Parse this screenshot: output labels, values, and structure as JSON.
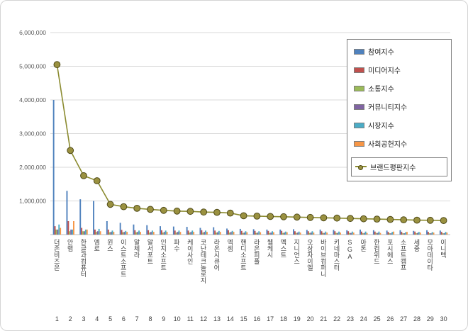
{
  "chart_data": {
    "type": "bar+line",
    "title": "",
    "grid": true,
    "legend_position": "top-right",
    "y_axis": {
      "max": 6000000,
      "min": 0,
      "tick_interval": 1000000,
      "tick_labels": [
        "1,000,000",
        "2,000,000",
        "3,000,000",
        "4,000,000",
        "5,000,000",
        "6,000,000"
      ]
    },
    "categories": [
      "더존비즈온",
      "안랩",
      "한글과컴퓨터",
      "엠로",
      "윈스",
      "이스트소프트",
      "알체라",
      "알서포트",
      "인지소프트",
      "파수",
      "케이사인",
      "코난테크놀로지",
      "라온시큐어",
      "엑셈",
      "핸디소프트",
      "라온피플",
      "웹케시",
      "멕스트",
      "지니언스",
      "오상자이엘",
      "바이브컴퍼니",
      "키네마스터",
      "SGA",
      "아톤",
      "한컴위드",
      "포시에스",
      "소프트캠프",
      "세중",
      "모아데이타",
      "이니텍"
    ],
    "ranks": [
      "1",
      "2",
      "3",
      "4",
      "5",
      "6",
      "7",
      "8",
      "9",
      "10",
      "11",
      "12",
      "13",
      "14",
      "15",
      "16",
      "17",
      "18",
      "19",
      "20",
      "21",
      "22",
      "23",
      "24",
      "25",
      "26",
      "27",
      "28",
      "29",
      "30"
    ],
    "bar_series": [
      {
        "name": "참여지수",
        "color": "#4f81bd",
        "values": [
          4000000,
          1300000,
          1050000,
          1000000,
          400000,
          350000,
          300000,
          280000,
          250000,
          240000,
          230000,
          200000,
          220000,
          180000,
          170000,
          160000,
          150000,
          150000,
          160000,
          140000,
          150000,
          140000,
          130000,
          150000,
          130000,
          120000,
          130000,
          110000,
          130000,
          120000
        ]
      },
      {
        "name": "미디어지수",
        "color": "#c0504d",
        "values": [
          250000,
          400000,
          200000,
          150000,
          150000,
          140000,
          130000,
          130000,
          130000,
          120000,
          120000,
          130000,
          120000,
          130000,
          110000,
          110000,
          110000,
          110000,
          100000,
          100000,
          100000,
          100000,
          100000,
          90000,
          90000,
          80000,
          80000,
          90000,
          80000,
          80000
        ]
      },
      {
        "name": "소통지수",
        "color": "#9bbb59",
        "values": [
          150000,
          100000,
          100000,
          80000,
          70000,
          70000,
          70000,
          60000,
          60000,
          60000,
          60000,
          60000,
          60000,
          60000,
          50000,
          50000,
          50000,
          50000,
          50000,
          50000,
          50000,
          50000,
          50000,
          40000,
          50000,
          40000,
          40000,
          40000,
          40000,
          40000
        ]
      },
      {
        "name": "커뮤니티지수",
        "color": "#8064a2",
        "values": [
          150000,
          150000,
          100000,
          100000,
          80000,
          80000,
          80000,
          80000,
          80000,
          80000,
          80000,
          80000,
          70000,
          80000,
          60000,
          60000,
          60000,
          60000,
          60000,
          60000,
          50000,
          50000,
          50000,
          50000,
          50000,
          40000,
          40000,
          50000,
          40000,
          40000
        ]
      },
      {
        "name": "시장지수",
        "color": "#4bacc6",
        "values": [
          300000,
          150000,
          150000,
          170000,
          120000,
          110000,
          120000,
          120000,
          120000,
          120000,
          120000,
          120000,
          110000,
          110000,
          100000,
          100000,
          100000,
          90000,
          90000,
          100000,
          90000,
          90000,
          90000,
          90000,
          90000,
          80000,
          70000,
          80000,
          75000,
          80000
        ]
      },
      {
        "name": "사회공헌지수",
        "color": "#f79646",
        "values": [
          200000,
          400000,
          150000,
          100000,
          80000,
          80000,
          80000,
          80000,
          80000,
          80000,
          80000,
          80000,
          80000,
          80000,
          70000,
          70000,
          70000,
          70000,
          60000,
          60000,
          60000,
          60000,
          60000,
          50000,
          50000,
          90000,
          80000,
          60000,
          60000,
          60000
        ]
      }
    ],
    "line_series": {
      "name": "브랜드평판지수",
      "color": "#8b8b30",
      "marker_fill": "#9a9140",
      "marker_stroke": "#4f4a18",
      "values": [
        5050000,
        2500000,
        1750000,
        1600000,
        900000,
        830000,
        780000,
        750000,
        720000,
        700000,
        690000,
        670000,
        660000,
        640000,
        560000,
        550000,
        540000,
        530000,
        520000,
        510000,
        500000,
        490000,
        480000,
        470000,
        460000,
        450000,
        440000,
        430000,
        425000,
        420000
      ]
    }
  }
}
